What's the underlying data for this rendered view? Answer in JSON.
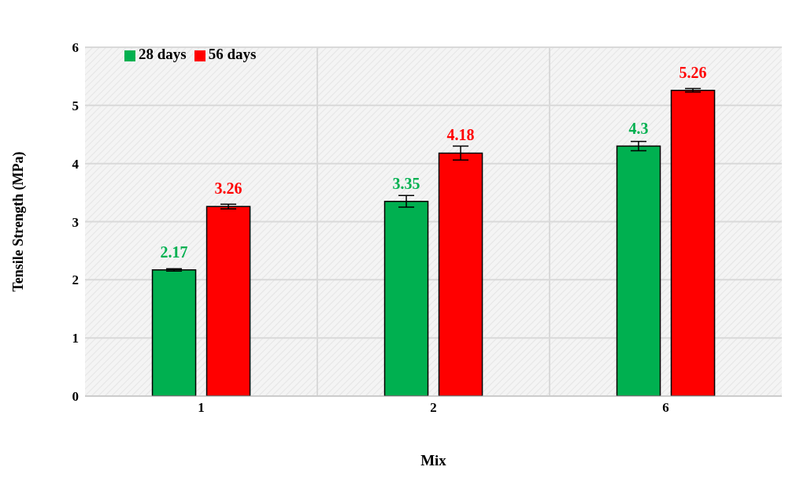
{
  "chart_data": {
    "type": "bar",
    "xlabel": "Mix",
    "ylabel": "Tensile Strength (MPa)",
    "categories": [
      "1",
      "2",
      "6"
    ],
    "series": [
      {
        "name": "28 days",
        "color": "#00b050",
        "values": [
          2.17,
          3.35,
          4.3
        ],
        "errors": [
          0.02,
          0.1,
          0.08
        ]
      },
      {
        "name": "56 days",
        "color": "#ff0000",
        "values": [
          3.26,
          4.18,
          5.26
        ],
        "errors": [
          0.04,
          0.12,
          0.03
        ]
      }
    ],
    "ylim": [
      0,
      6
    ],
    "yticks": [
      0,
      1,
      2,
      3,
      4,
      5,
      6
    ],
    "grid": true,
    "legend": "top left",
    "data_labels": true
  }
}
